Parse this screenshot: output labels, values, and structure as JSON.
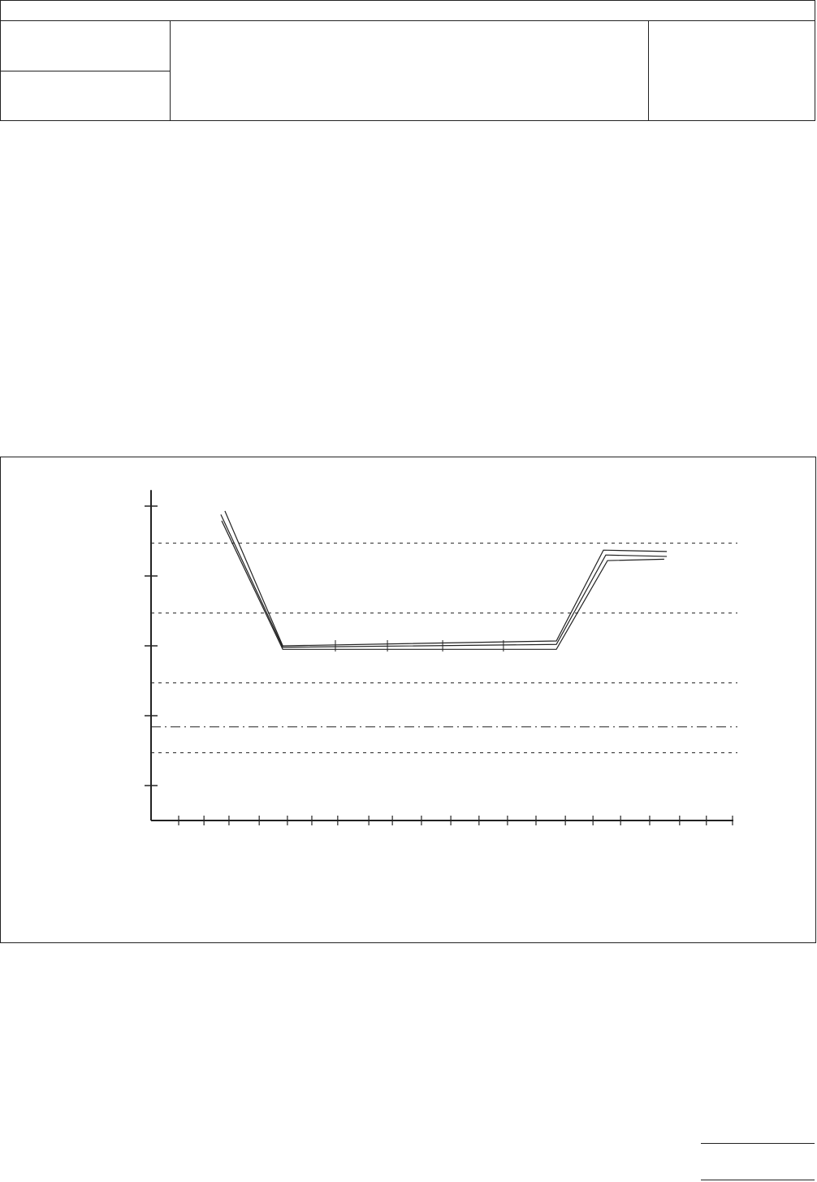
{
  "header": {
    "title": "",
    "cells": []
  },
  "chart_data": {
    "type": "line",
    "title": "",
    "xlabel": "",
    "ylabel": "",
    "xlim": [
      0,
      20.2
    ],
    "ylim": [
      0.5,
      5.23
    ],
    "x_ticks": [
      0.95,
      1.82,
      2.68,
      3.72,
      4.69,
      5.53,
      6.42,
      7.49,
      8.3,
      9.3,
      10.31,
      11.28,
      12.26,
      13.24,
      14.25,
      15.2,
      16.15,
      17.15,
      18.18,
      19.1,
      20
    ],
    "y_ticks": [
      1,
      2,
      3,
      4,
      5
    ],
    "grid": false,
    "reference_lines": [
      {
        "y": 4.47,
        "style": "dashed"
      },
      {
        "y": 3.47,
        "style": "dashed"
      },
      {
        "y": 2.47,
        "style": "dashed"
      },
      {
        "y": 1.84,
        "style": "dash-dot"
      },
      {
        "y": 1.47,
        "style": "dashed"
      }
    ],
    "series": [
      {
        "x": [
          2.54,
          4.53,
          13.94,
          15.56,
          17.74
        ],
        "y": [
          4.93,
          3.0,
          3.07,
          4.37,
          4.35
        ]
      },
      {
        "x": [
          2.4,
          4.53,
          13.94,
          15.64,
          17.74
        ],
        "y": [
          4.88,
          2.98,
          3.02,
          4.3,
          4.28
        ]
      },
      {
        "x": [
          2.43,
          4.53,
          13.94,
          15.7,
          17.65
        ],
        "y": [
          4.79,
          2.95,
          2.95,
          4.22,
          4.24
        ]
      }
    ],
    "markers_x": [
      6.34,
      8.13,
      10.03,
      12.12
    ],
    "line_color": "#222222"
  }
}
